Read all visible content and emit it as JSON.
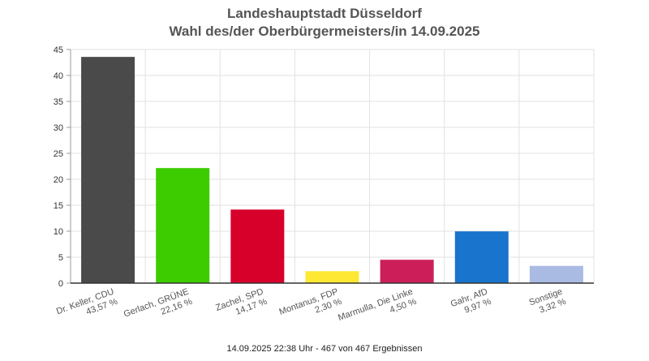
{
  "chart_data": {
    "type": "bar",
    "title": "Landeshauptstadt Düsseldorf",
    "subtitle": "Wahl des/der Oberbürgermeisters/in 14.09.2025",
    "categories": [
      {
        "name": "Dr. Keller, CDU",
        "pct_label": "43,57 %"
      },
      {
        "name": "Gerlach, GRÜNE",
        "pct_label": "22,16 %"
      },
      {
        "name": "Zachel, SPD",
        "pct_label": "14,17 %"
      },
      {
        "name": "Montanus, FDP",
        "pct_label": "2,30 %"
      },
      {
        "name": "Marmulla, Die Linke",
        "pct_label": "4,50 %"
      },
      {
        "name": "Gahr, AfD",
        "pct_label": "9,97 %"
      },
      {
        "name": "Sonstige",
        "pct_label": "3,32 %"
      }
    ],
    "values": [
      43.57,
      22.16,
      14.17,
      2.3,
      4.5,
      9.97,
      3.32
    ],
    "colors": [
      "#4a4a4a",
      "#3dcc00",
      "#d6002a",
      "#ffe833",
      "#cc1f5a",
      "#1874cd",
      "#aabbe3"
    ],
    "ylim": [
      0,
      45
    ],
    "yticks": [
      0,
      5,
      10,
      15,
      20,
      25,
      30,
      35,
      40,
      45
    ],
    "grid": true,
    "legend": "none"
  },
  "footer": "14.09.2025 22:38 Uhr - 467 von 467 Ergebnissen"
}
